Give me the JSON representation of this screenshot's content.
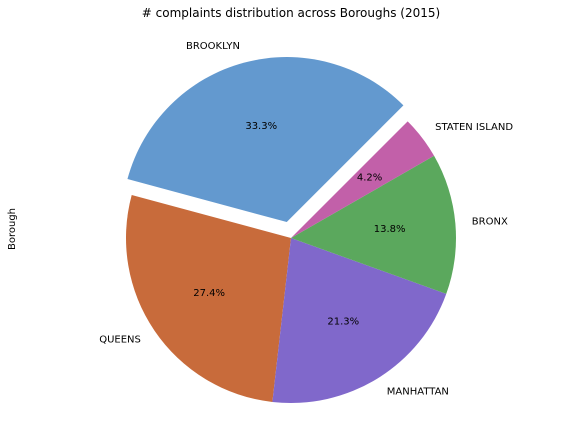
{
  "chart_data": {
    "type": "pie",
    "title": "# complaints distribution across Boroughs (2015)",
    "ylabel": "Borough",
    "categories": [
      "BROOKLYN",
      "QUEENS",
      "MANHATTAN",
      "BRONX",
      "STATEN ISLAND"
    ],
    "values": [
      33.3,
      27.4,
      21.3,
      13.8,
      4.2
    ],
    "value_labels": [
      "33.3%",
      "27.4%",
      "21.3%",
      "13.8%",
      "4.2%"
    ],
    "colors": [
      "#6399cf",
      "#c86b3b",
      "#8068cb",
      "#5ba85d",
      "#c260a9"
    ],
    "exploded": [
      "BROOKLYN"
    ],
    "start_angle_deg": 45,
    "direction": "counterclockwise",
    "legend": "none"
  }
}
